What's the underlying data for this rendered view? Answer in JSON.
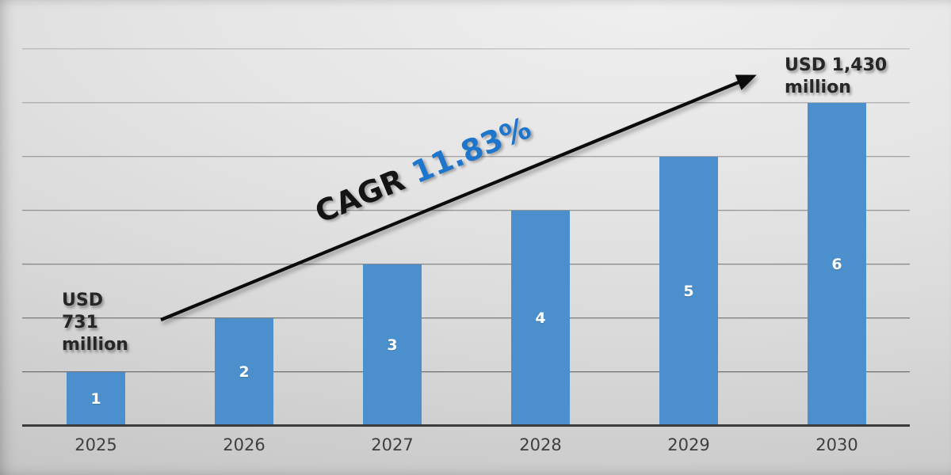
{
  "chart_data": {
    "type": "bar",
    "title": "",
    "categories": [
      "2025",
      "2026",
      "2027",
      "2028",
      "2029",
      "2030"
    ],
    "values": [
      1,
      2,
      3,
      4,
      5,
      6
    ],
    "bar_labels": [
      "1",
      "2",
      "3",
      "4",
      "5",
      "6"
    ],
    "ylim": [
      0,
      7
    ],
    "grid": true,
    "legend": false,
    "annotations": {
      "start_label": "USD 731 million",
      "end_label": "USD 1,430 million",
      "cagr_prefix": "CAGR",
      "cagr_value": "11.83%"
    },
    "colors": {
      "bar": "#4B90CC",
      "bar_label": "#FFFFFF",
      "cagr_prefix": "#141414",
      "cagr_value": "#1E76CC",
      "annotation_text": "#262626",
      "axis_line": "#3C3C3C",
      "gridline": "#5A5A5A",
      "tick_label": "#3F3F3F",
      "arrow": "#0B0B0B"
    }
  }
}
